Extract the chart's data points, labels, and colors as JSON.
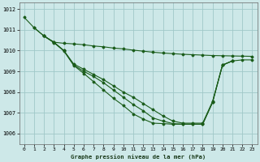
{
  "background_color": "#cde8e8",
  "grid_color": "#a0c8c8",
  "line_color": "#1a5c1a",
  "xlabel": "Graphe pression niveau de la mer (hPa)",
  "xlim": [
    -0.5,
    23.5
  ],
  "ylim": [
    1005.5,
    1012.3
  ],
  "yticks": [
    1006,
    1007,
    1008,
    1009,
    1010,
    1011,
    1012
  ],
  "xticks": [
    0,
    1,
    2,
    3,
    4,
    5,
    6,
    7,
    8,
    9,
    10,
    11,
    12,
    13,
    14,
    15,
    16,
    17,
    18,
    19,
    20,
    21,
    22,
    23
  ],
  "series": [
    {
      "x": [
        0,
        1,
        2,
        3,
        4,
        5,
        6,
        7,
        8,
        9,
        10,
        11,
        12,
        13,
        14,
        15,
        16,
        17,
        18,
        19,
        20,
        21,
        22,
        23
      ],
      "y": [
        1011.6,
        1011.1,
        1010.7,
        1010.4,
        1010.35,
        1010.32,
        1010.28,
        1010.22,
        1010.18,
        1010.12,
        1010.08,
        1010.02,
        1009.97,
        1009.92,
        1009.88,
        1009.85,
        1009.82,
        1009.8,
        1009.78,
        1009.76,
        1009.75,
        1009.74,
        1009.73,
        1009.72
      ]
    },
    {
      "x": [
        1,
        2,
        3,
        4,
        5,
        6,
        7,
        8,
        9,
        10,
        11,
        12,
        13,
        14,
        15,
        16,
        17,
        18,
        19,
        20,
        21,
        22,
        23
      ],
      "y": [
        1011.1,
        1010.7,
        1010.4,
        1010.0,
        1009.35,
        1009.1,
        1008.85,
        1008.6,
        1008.3,
        1008.0,
        1007.75,
        1007.45,
        1007.15,
        1006.85,
        1006.6,
        1006.5,
        1006.5,
        1006.5,
        1007.55,
        1009.3,
        1009.5,
        1009.55,
        1009.55
      ]
    },
    {
      "x": [
        2,
        3,
        4,
        5,
        6,
        7,
        8,
        9,
        10,
        11,
        12,
        13,
        14,
        15,
        16,
        17,
        18,
        19,
        20,
        21
      ],
      "y": [
        1010.7,
        1010.4,
        1010.0,
        1009.3,
        1009.0,
        1008.75,
        1008.45,
        1008.1,
        1007.75,
        1007.4,
        1007.1,
        1006.75,
        1006.6,
        1006.48,
        1006.45,
        1006.45,
        1006.45,
        1007.5,
        1009.3,
        1009.5
      ]
    },
    {
      "x": [
        2,
        3,
        4,
        5,
        6,
        7,
        8,
        9,
        10,
        11,
        12,
        13,
        14,
        15,
        16,
        17,
        18,
        19,
        20,
        21
      ],
      "y": [
        1010.7,
        1010.38,
        1009.98,
        1009.28,
        1008.9,
        1008.5,
        1008.1,
        1007.7,
        1007.35,
        1006.95,
        1006.7,
        1006.5,
        1006.48,
        1006.45,
        1006.45,
        1006.45,
        1006.45,
        1007.5,
        1009.3,
        1009.5
      ]
    }
  ]
}
